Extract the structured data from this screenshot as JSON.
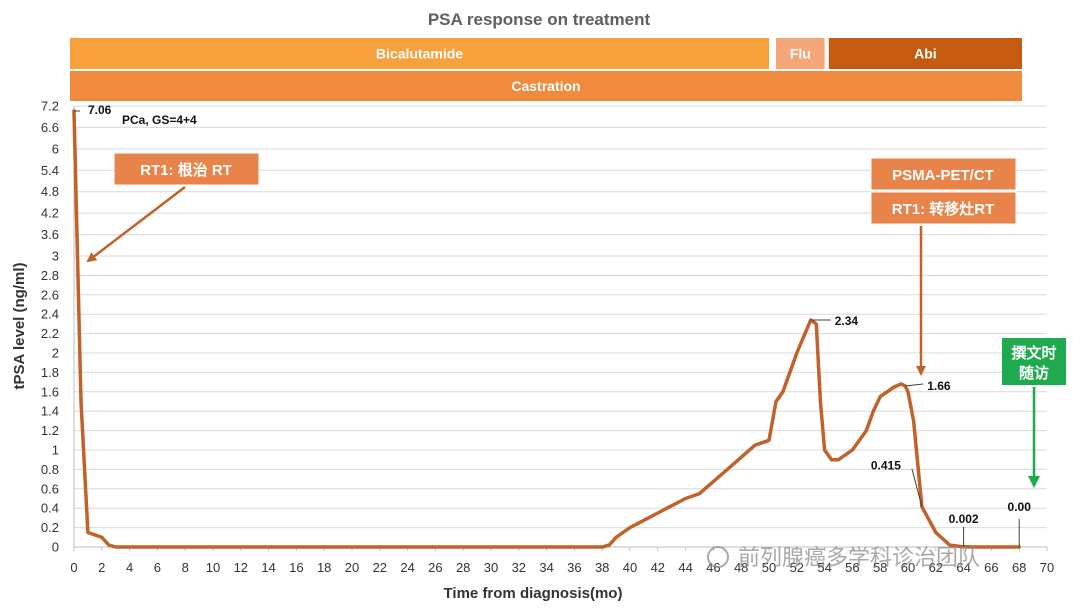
{
  "chart_data": {
    "type": "line",
    "title": "PSA response on treatment",
    "xlabel": "Time from diagnosis(mo)",
    "ylabel": "tPSA level (ng/ml)",
    "xlim": [
      0,
      70
    ],
    "ylim": [
      0,
      7.2
    ],
    "x_ticks": [
      0,
      2,
      4,
      6,
      8,
      10,
      12,
      14,
      16,
      18,
      20,
      22,
      24,
      26,
      28,
      30,
      32,
      34,
      36,
      38,
      40,
      42,
      44,
      46,
      48,
      50,
      52,
      54,
      56,
      58,
      60,
      62,
      64,
      66,
      68,
      70
    ],
    "y_ticks": [
      0,
      0.2,
      0.4,
      0.6,
      0.8,
      1,
      1.2,
      1.4,
      1.6,
      1.8,
      2,
      2.2,
      2.4,
      2.6,
      2.8,
      3,
      3.6,
      4.2,
      4.8,
      5.4,
      6,
      6.6,
      7.2
    ],
    "grid": true,
    "series": [
      {
        "name": "tPSA",
        "color": "#c0622a",
        "x": [
          0,
          0.5,
          1,
          2,
          2.5,
          3,
          10,
          20,
          30,
          38,
          38.5,
          39,
          40,
          42,
          44,
          45,
          47,
          49,
          50,
          50.5,
          51,
          52,
          53,
          53.4,
          53.7,
          54,
          54.5,
          55,
          56,
          57,
          57.5,
          58,
          59,
          59.5,
          59.8,
          60,
          60.4,
          61,
          62,
          63,
          64,
          65,
          66,
          67,
          68
        ],
        "y": [
          7.06,
          1.5,
          0.15,
          0.1,
          0.02,
          0,
          0,
          0,
          0,
          0,
          0.02,
          0.1,
          0.2,
          0.35,
          0.5,
          0.55,
          0.8,
          1.05,
          1.1,
          1.5,
          1.6,
          2.0,
          2.34,
          2.3,
          1.5,
          1.0,
          0.9,
          0.9,
          1.0,
          1.2,
          1.4,
          1.55,
          1.65,
          1.68,
          1.66,
          1.6,
          1.3,
          0.415,
          0.15,
          0.02,
          0.002,
          0,
          0,
          0,
          0
        ]
      }
    ],
    "data_labels": [
      {
        "text": "7.06",
        "x": 0,
        "y": 7.06
      },
      {
        "text": "2.34",
        "x": 53,
        "y": 2.34
      },
      {
        "text": "1.66",
        "x": 59.8,
        "y": 1.66
      },
      {
        "text": "0.415",
        "x": 61,
        "y": 0.415
      },
      {
        "text": "0.002",
        "x": 64,
        "y": 0.002
      },
      {
        "text": "0.00",
        "x": 68,
        "y": 0
      }
    ],
    "annotations": {
      "pca_note": "PCa, GS=4+4",
      "rt1_radical": "RT1: 根治 RT",
      "psma": "PSMA-PET/CT",
      "rt1_metastatic": "RT1: 转移灶RT",
      "followup_line1": "撰文时",
      "followup_line2": "随访"
    },
    "treatment_bars": [
      {
        "label": "Bicalutamide",
        "start": 0,
        "end": 50,
        "color": "#f7a13c"
      },
      {
        "label": "Flu",
        "start": 50.5,
        "end": 54,
        "color": "#f5a77a"
      },
      {
        "label": "Abi",
        "start": 54.3,
        "end": 68.2,
        "color": "#c55a11"
      },
      {
        "label": "Castration",
        "start": 0,
        "end": 68.2,
        "color": "#ef8a3e"
      }
    ]
  },
  "colors": {
    "line": "#c0622a",
    "annotation_box": "#e8834a",
    "annotation_arrow": "#c0622a",
    "followup_box": "#1faa4f",
    "followup_arrow": "#1faa4f"
  },
  "watermark": {
    "text": "前列腺癌多学科诊治团队"
  }
}
